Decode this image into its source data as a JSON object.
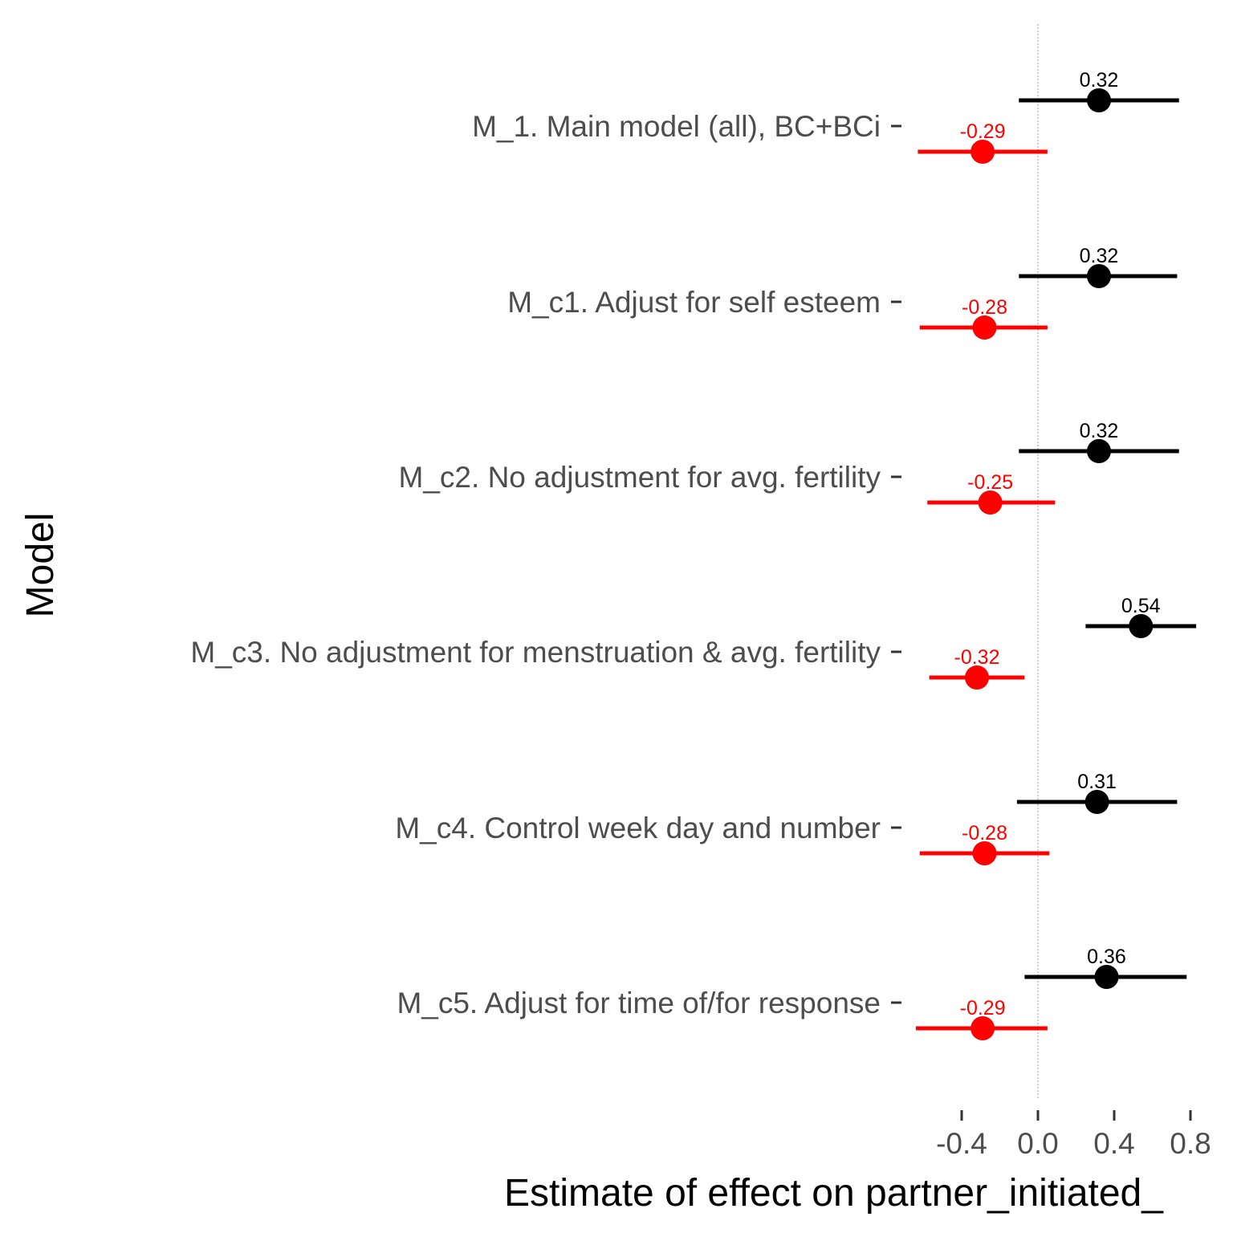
{
  "chart_data": {
    "type": "scatter",
    "subtype": "forest-plot",
    "xlabel": "Estimate of effect on partner_initiated_",
    "ylabel": "Model",
    "xlim": [
      -0.68,
      1.03
    ],
    "x_ticks": [
      "-0.4",
      "0.0",
      "0.4",
      "0.8"
    ],
    "x_tick_values": [
      -0.4,
      0.0,
      0.4,
      0.8
    ],
    "reference_line": 0,
    "grid": false,
    "colors": {
      "series_black": "#000000",
      "series_red": "#ff0000",
      "reference_line": "#cccccc"
    },
    "categories": [
      "M_1. Main model (all), BC+BCi",
      "M_c1. Adjust for self esteem",
      "M_c2. No adjustment for avg. fertility",
      "M_c3. No adjustment for menstruation & avg. fertility",
      "M_c4. Control week day and number",
      "M_c5. Adjust for time of/for response"
    ],
    "series": [
      {
        "color": "#000000",
        "values": [
          0.32,
          0.32,
          0.32,
          0.54,
          0.31,
          0.36
        ],
        "lower": [
          -0.1,
          -0.1,
          -0.1,
          0.25,
          -0.11,
          -0.07
        ],
        "upper": [
          0.74,
          0.73,
          0.74,
          0.83,
          0.73,
          0.78
        ],
        "labels": [
          "0.32",
          "0.32",
          "0.32",
          "0.54",
          "0.31",
          "0.36"
        ]
      },
      {
        "color": "#ff0000",
        "values": [
          -0.29,
          -0.28,
          -0.25,
          -0.32,
          -0.28,
          -0.29
        ],
        "lower": [
          -0.63,
          -0.62,
          -0.58,
          -0.57,
          -0.62,
          -0.64
        ],
        "upper": [
          0.05,
          0.05,
          0.09,
          -0.07,
          0.06,
          0.05
        ],
        "labels": [
          "-0.29",
          "-0.28",
          "-0.25",
          "-0.32",
          "-0.28",
          "-0.29"
        ]
      }
    ]
  }
}
